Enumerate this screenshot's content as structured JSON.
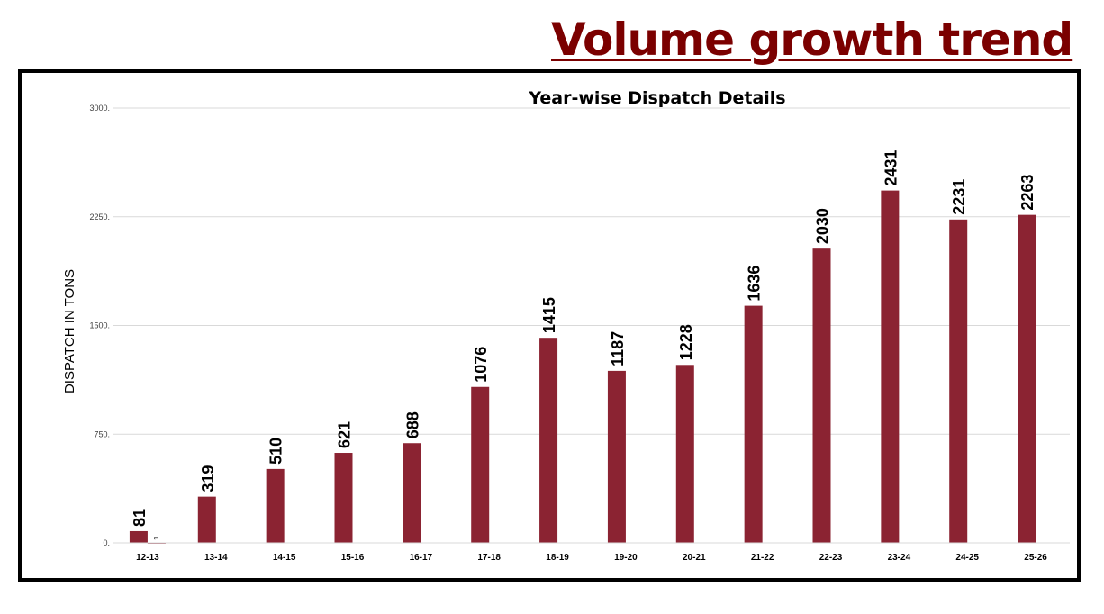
{
  "slide_title": "Volume growth trend",
  "chart_data": {
    "type": "bar",
    "title": "Year-wise Dispatch Details",
    "ylabel": "DISPATCH IN TONS",
    "xlabel": "",
    "ylim": [
      0,
      3000
    ],
    "yticks": [
      0,
      750,
      1500,
      2250,
      3000
    ],
    "ytick_labels": [
      "0.",
      "750.",
      "1500.",
      "2250.",
      "3000."
    ],
    "grid": true,
    "categories": [
      "12-13",
      "13-14",
      "14-15",
      "15-16",
      "16-17",
      "17-18",
      "18-19",
      "19-20",
      "20-21",
      "21-22",
      "22-23",
      "23-24",
      "24-25",
      "25-26"
    ],
    "series": [
      {
        "values": [
          81,
          319,
          510,
          621,
          688,
          1076,
          1415,
          1187,
          1228,
          1636,
          2030,
          2431,
          2231,
          2263
        ],
        "labels": [
          "81",
          "319",
          "510",
          "621",
          "688",
          "1076",
          "1415",
          "1187",
          "1228",
          "1636",
          "2030",
          "2431",
          "2231",
          "2263"
        ],
        "color": "#8b2332"
      },
      {
        "values": [
          1,
          null,
          null,
          null,
          null,
          null,
          null,
          null,
          null,
          null,
          null,
          null,
          null,
          null
        ],
        "labels": [
          "1",
          "",
          "",
          "",
          "",
          "",
          "",
          "",
          "",
          "",
          "",
          "",
          "",
          ""
        ],
        "color": "#8b2332"
      }
    ]
  }
}
